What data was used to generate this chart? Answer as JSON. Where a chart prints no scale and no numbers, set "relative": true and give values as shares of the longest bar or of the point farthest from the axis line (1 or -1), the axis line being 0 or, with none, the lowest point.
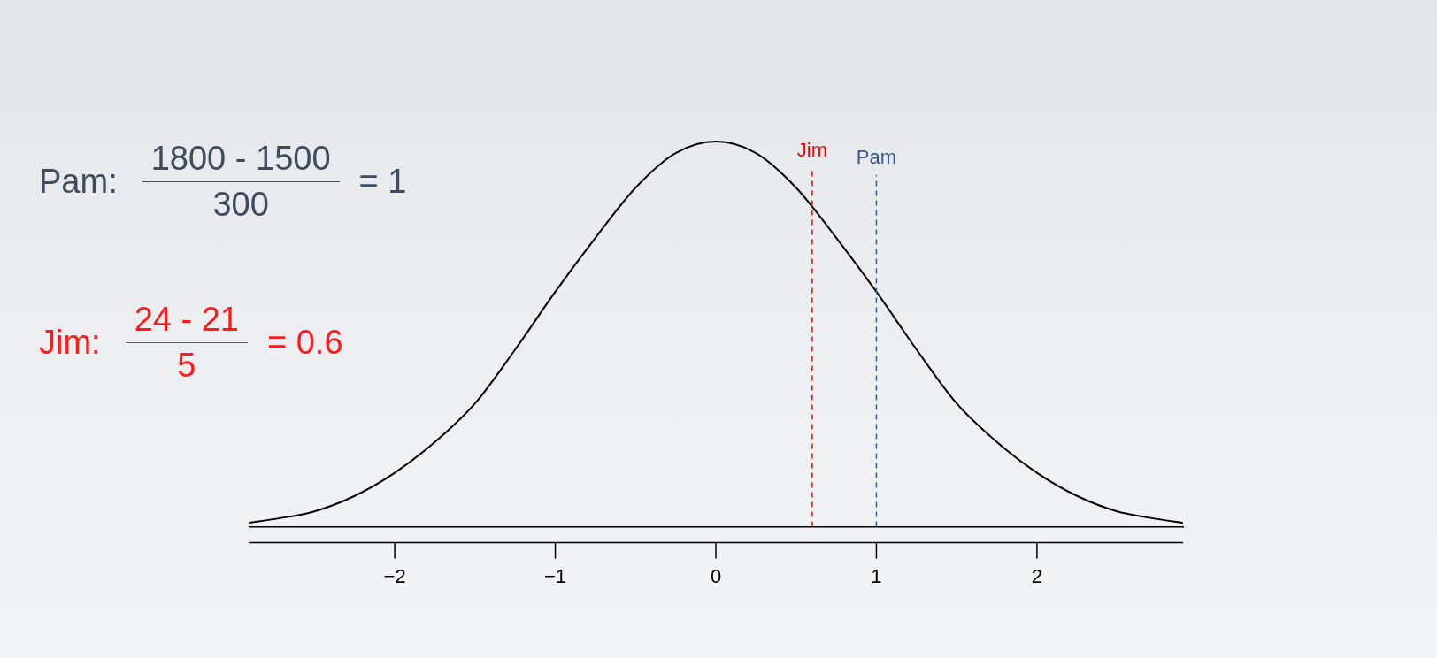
{
  "chart_data": {
    "type": "line",
    "relative": true,
    "x": [
      -2.91,
      -2.75,
      -2.5,
      -2.25,
      -2,
      -1.75,
      -1.5,
      -1.25,
      -1,
      -0.75,
      -0.5,
      -0.25,
      0,
      0.25,
      0.5,
      0.75,
      1,
      1.25,
      1.5,
      1.75,
      2,
      2.25,
      2.5,
      2.75,
      2.91
    ],
    "series": [
      {
        "color": "#000000",
        "values": [
          0.01,
          0.02,
          0.04,
          0.08,
          0.14,
          0.22,
          0.32,
          0.46,
          0.61,
          0.75,
          0.88,
          0.97,
          1,
          0.97,
          0.88,
          0.75,
          0.61,
          0.46,
          0.32,
          0.22,
          0.14,
          0.08,
          0.04,
          0.02,
          0.01
        ]
      }
    ],
    "xlim": [
      -2.91,
      2.91
    ],
    "xticks": [
      {
        "value": -2,
        "label": "−2"
      },
      {
        "value": -1,
        "label": "−1"
      },
      0,
      1,
      2
    ],
    "ref_lines": [
      {
        "axis": "x",
        "value": 0.6,
        "label": "Jim",
        "color": "#ff0000",
        "line_style": "dashed"
      },
      {
        "axis": "x",
        "value": 1,
        "label": "Pam",
        "color": "#3b5a8a",
        "line_style": "dashed"
      }
    ],
    "annotations": [
      "Pam:",
      "1800 - 1500",
      "300",
      "= 1",
      "Jim:",
      "24 - 21",
      "5",
      "= 0.6"
    ],
    "grid": false,
    "legend": false,
    "marker": "none",
    "line_style": "solid"
  }
}
